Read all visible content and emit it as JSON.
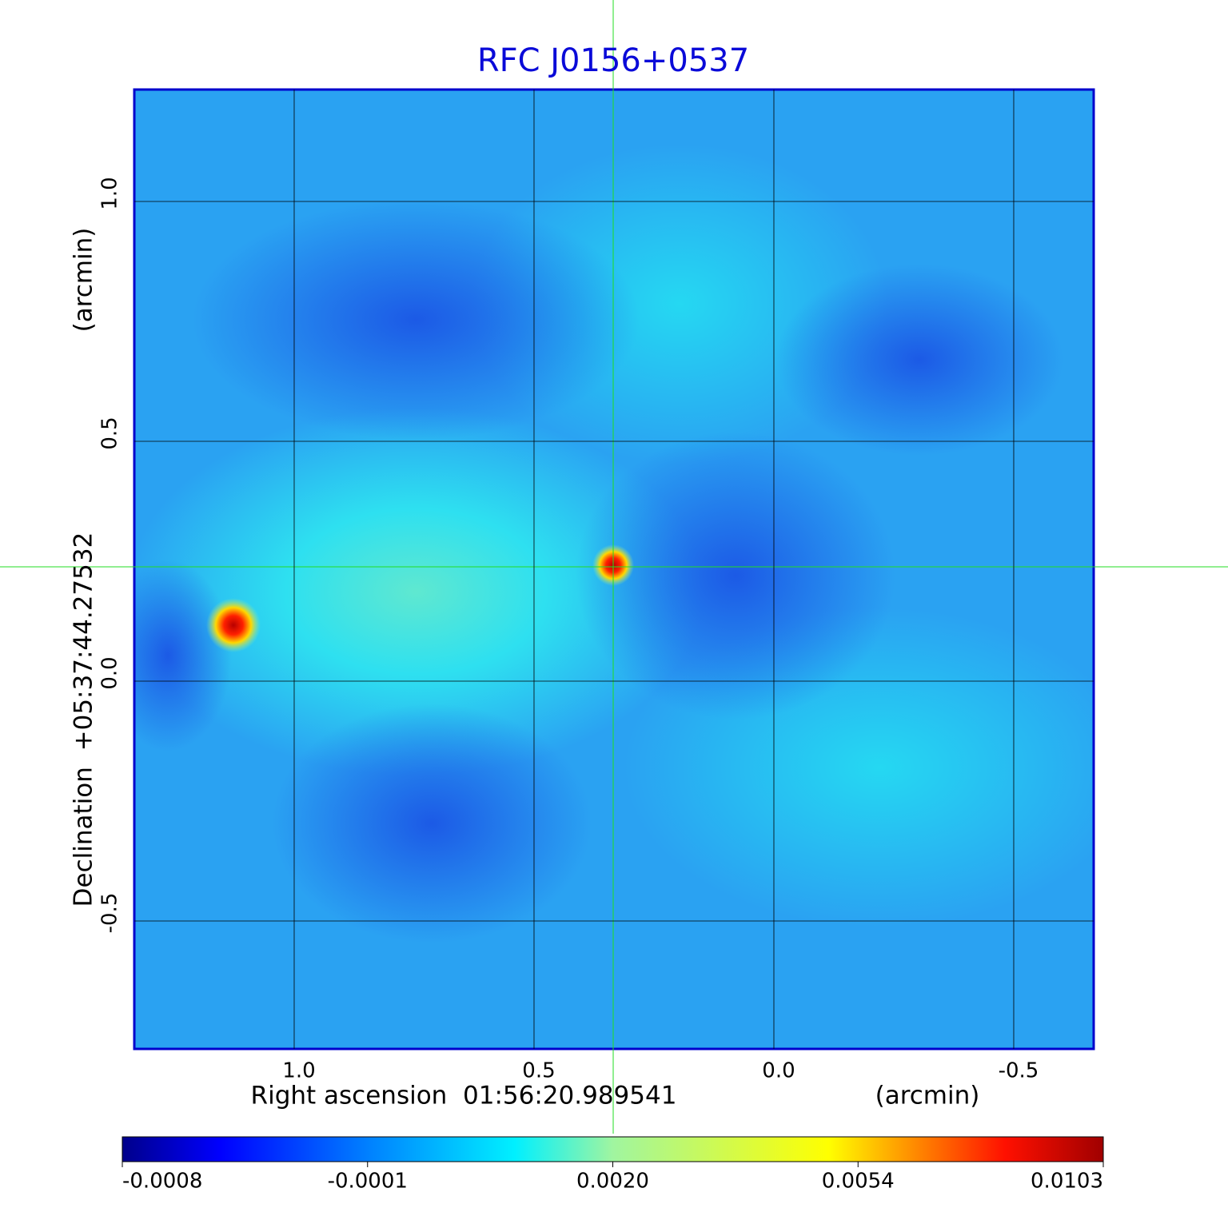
{
  "chart_data": {
    "type": "image",
    "title": "RFC J0156+0537",
    "xlabel": "Right ascension  01:56:20.989541",
    "xlabel_unit": "(arcmin)",
    "ylabel": "Declination  +05:37:44.27532",
    "ylabel_unit": "(arcmin)",
    "xlim": [
      1.3333,
      -0.6667
    ],
    "xticks": [
      {
        "value": 1,
        "label": "1.0"
      },
      0.5,
      {
        "value": 0,
        "label": "0.0"
      },
      -0.5
    ],
    "ylim": [
      -0.7667,
      1.2333
    ],
    "yticks": [
      {
        "value": 1,
        "label": "1.0"
      },
      0.5,
      {
        "value": 0,
        "label": "0.0"
      },
      -0.5
    ],
    "grid": true,
    "colorbar_ticks": [
      -0.0008,
      -0.0001,
      {
        "value": 0.002,
        "label": "0.0020"
      },
      0.0054,
      0.0103
    ]
  }
}
